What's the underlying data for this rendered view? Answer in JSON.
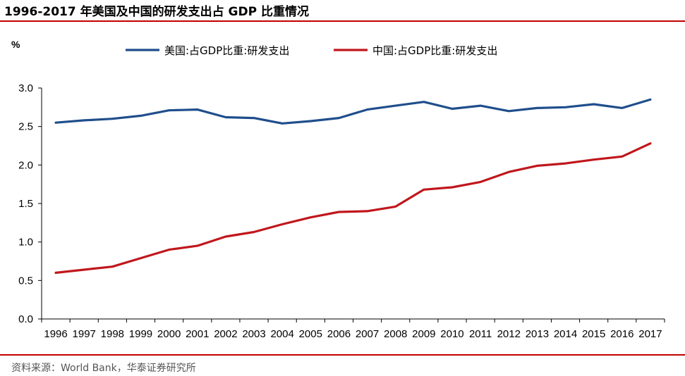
{
  "title": "1996-2017 年美国及中国的研发支出占 GDP 比重情况",
  "source": "资料来源：World Bank，华泰证券研究所",
  "colors": {
    "us": "#1f4e8c",
    "cn": "#c0171c",
    "rule": "#c00000",
    "axis": "#000000"
  },
  "chart_data": {
    "type": "line",
    "title": "1996-2017 年美国及中国的研发支出占 GDP 比重情况",
    "ylabel": "%",
    "xlabel": "",
    "ylim": [
      0,
      3.0
    ],
    "yticks": [
      "0.0",
      "0.5",
      "1.0",
      "1.5",
      "2.0",
      "2.5",
      "3.0"
    ],
    "grid": false,
    "legend_position": "top-center",
    "categories": [
      "1996",
      "1997",
      "1998",
      "1999",
      "2000",
      "2001",
      "2002",
      "2003",
      "2004",
      "2005",
      "2006",
      "2007",
      "2008",
      "2009",
      "2010",
      "2011",
      "2012",
      "2013",
      "2014",
      "2015",
      "2016",
      "2017"
    ],
    "series": [
      {
        "name": "美国:占GDP比重:研发支出",
        "color": "#1f4e8c",
        "values": [
          2.55,
          2.58,
          2.6,
          2.64,
          2.71,
          2.72,
          2.62,
          2.61,
          2.54,
          2.57,
          2.61,
          2.72,
          2.77,
          2.82,
          2.73,
          2.77,
          2.7,
          2.74,
          2.75,
          2.79,
          2.74,
          2.85
        ]
      },
      {
        "name": "中国:占GDP比重:研发支出",
        "color": "#c0171c",
        "values": [
          0.6,
          0.64,
          0.68,
          0.79,
          0.9,
          0.95,
          1.07,
          1.13,
          1.23,
          1.32,
          1.39,
          1.4,
          1.46,
          1.68,
          1.71,
          1.78,
          1.91,
          1.99,
          2.02,
          2.07,
          2.11,
          2.28
        ]
      }
    ]
  }
}
